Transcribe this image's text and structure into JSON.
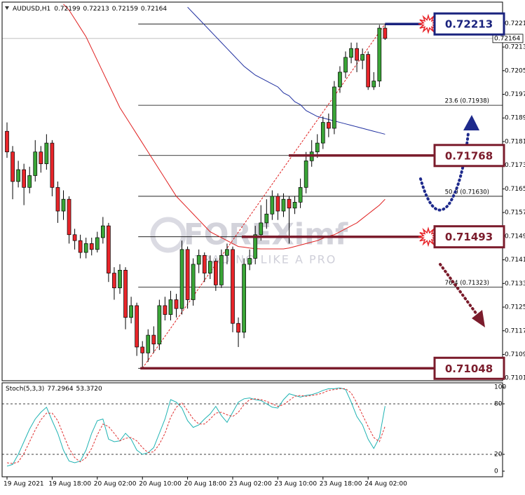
{
  "chart_data": {
    "type": "candlestick",
    "title": "AUDUSD,H1",
    "categories": [
      "19 Aug 2021",
      null,
      null,
      null,
      null,
      null,
      null,
      null,
      "19 Aug 18:00",
      null,
      null,
      null,
      null,
      null,
      null,
      null,
      "20 Aug 02:00",
      null,
      null,
      null,
      null,
      null,
      null,
      null,
      "20 Aug 10:00",
      null,
      null,
      null,
      null,
      null,
      null,
      null,
      "20 Aug 18:00",
      null,
      null,
      null,
      null,
      null,
      null,
      null,
      "23 Aug 02:00",
      null,
      null,
      null,
      null,
      null,
      null,
      null,
      "23 Aug 10:00",
      null,
      null,
      null,
      null,
      null,
      null,
      null,
      "23 Aug 18:00",
      null,
      null,
      null,
      null,
      null,
      null,
      null,
      "24 Aug 02:00",
      null,
      null,
      null
    ],
    "open": [
      0.7185,
      0.7178,
      0.7168,
      0.7172,
      0.7166,
      0.717,
      0.7178,
      0.7174,
      0.7181,
      0.7166,
      0.7158,
      0.7162,
      0.715,
      0.7148,
      0.7144,
      0.7147,
      0.7145,
      0.7149,
      0.7153,
      0.7137,
      0.7132,
      0.7138,
      0.7122,
      0.7126,
      0.7112,
      0.711,
      0.7116,
      0.7113,
      0.7126,
      0.7123,
      0.7128,
      0.7125,
      0.7145,
      0.7128,
      0.714,
      0.7143,
      0.7137,
      0.7141,
      0.7133,
      0.7143,
      0.7145,
      0.712,
      0.7117,
      0.714,
      0.7142,
      0.715,
      0.7154,
      0.7157,
      0.7163,
      0.7158,
      0.7162,
      0.7159,
      0.7161,
      0.7166,
      0.7175,
      0.7178,
      0.7181,
      0.7188,
      0.7186,
      0.72,
      0.7205,
      0.721,
      0.7213,
      0.7209,
      0.7211,
      0.72,
      0.7202,
      0.72199
    ],
    "high": [
      0.7188,
      0.718,
      0.7175,
      0.7174,
      0.7173,
      0.7182,
      0.718,
      0.7184,
      0.7182,
      0.7168,
      0.7165,
      0.7163,
      0.7152,
      0.715,
      0.7149,
      0.7149,
      0.7151,
      0.7156,
      0.7154,
      0.7139,
      0.714,
      0.7139,
      0.7129,
      0.7127,
      0.7114,
      0.7118,
      0.7119,
      0.7128,
      0.7129,
      0.7131,
      0.713,
      0.7148,
      0.7146,
      0.7142,
      0.7145,
      0.7144,
      0.7143,
      0.7142,
      0.7145,
      0.7147,
      0.7146,
      0.7122,
      0.7142,
      0.7145,
      0.7153,
      0.716,
      0.7162,
      0.7165,
      0.7164,
      0.7164,
      0.7163,
      0.7163,
      0.7169,
      0.7178,
      0.7182,
      0.7184,
      0.719,
      0.7191,
      0.7202,
      0.7207,
      0.7212,
      0.7215,
      0.7215,
      0.7213,
      0.7212,
      0.7205,
      0.7221,
      0.72213
    ],
    "low": [
      0.7176,
      0.7162,
      0.7166,
      0.716,
      0.7164,
      0.7168,
      0.7171,
      0.7172,
      0.7163,
      0.7154,
      0.7155,
      0.7147,
      0.7145,
      0.7142,
      0.7142,
      0.7143,
      0.7144,
      0.7147,
      0.7134,
      0.7128,
      0.713,
      0.7118,
      0.712,
      0.7109,
      0.71048,
      0.7107,
      0.711,
      0.7111,
      0.7121,
      0.7121,
      0.7122,
      0.7123,
      0.7125,
      0.7126,
      0.7137,
      0.7134,
      0.7135,
      0.7131,
      0.7132,
      0.714,
      0.7117,
      0.7112,
      0.7115,
      0.7138,
      0.714,
      0.7148,
      0.7152,
      0.7155,
      0.7155,
      0.7156,
      0.7147,
      0.7157,
      0.7159,
      0.7164,
      0.7173,
      0.7176,
      0.7179,
      0.7183,
      0.7184,
      0.7198,
      0.7203,
      0.7208,
      0.7205,
      0.7206,
      0.7199,
      0.7199,
      0.72,
      0.72159
    ],
    "close": [
      0.7178,
      0.7168,
      0.7172,
      0.7166,
      0.717,
      0.7178,
      0.7174,
      0.7181,
      0.7166,
      0.7158,
      0.7162,
      0.715,
      0.7148,
      0.7144,
      0.7147,
      0.7145,
      0.7149,
      0.7153,
      0.7137,
      0.7132,
      0.7138,
      0.7122,
      0.7126,
      0.7112,
      0.711,
      0.7116,
      0.7113,
      0.7126,
      0.7123,
      0.7128,
      0.7125,
      0.7145,
      0.7128,
      0.714,
      0.7143,
      0.7137,
      0.7141,
      0.7133,
      0.7143,
      0.7145,
      0.712,
      0.7117,
      0.714,
      0.7142,
      0.715,
      0.7154,
      0.7157,
      0.7163,
      0.7158,
      0.7162,
      0.7159,
      0.7161,
      0.7166,
      0.7175,
      0.7178,
      0.7181,
      0.7188,
      0.7186,
      0.72,
      0.7205,
      0.721,
      0.7213,
      0.7209,
      0.7211,
      0.72,
      0.7202,
      0.72199,
      0.72164
    ],
    "up_color": "#3aa537",
    "down_color": "#e8252a",
    "ylim": [
      0.71006,
      0.72287
    ],
    "yticks": [
      0.72215,
      0.72135,
      0.72055,
      0.71975,
      0.71895,
      0.71815,
      0.71735,
      0.71655,
      0.71575,
      0.71495,
      0.71415,
      0.71335,
      0.71255,
      0.71175,
      0.71095,
      0.71015
    ],
    "moving_averages": [
      {
        "color": "#e02020",
        "values": [
          null,
          null,
          null,
          null,
          null,
          null,
          null,
          null,
          null,
          null,
          0.7228,
          0.7226,
          0.7223,
          0.722,
          0.7217,
          0.7213,
          0.7209,
          0.7205,
          0.7201,
          0.7197,
          0.7193,
          0.719,
          0.7187,
          0.7184,
          0.7181,
          0.7178,
          0.7175,
          0.7172,
          0.7169,
          0.7166,
          0.7163,
          0.7161,
          0.7159,
          0.7157,
          0.7155,
          0.7153,
          0.7151,
          0.715,
          0.7149,
          0.7148,
          0.7147,
          0.7146,
          0.71458,
          0.71455,
          0.71453,
          0.71452,
          0.71452,
          0.71452,
          0.71452,
          0.71452,
          0.71455,
          0.7146,
          0.71465,
          0.7147,
          0.71475,
          0.7148,
          0.71488,
          0.71495,
          0.715,
          0.7151,
          0.7152,
          0.7153,
          0.7154,
          0.71555,
          0.7157,
          0.71585,
          0.716,
          0.7162
        ]
      },
      {
        "color": "#2030a0",
        "values": [
          null,
          null,
          null,
          null,
          null,
          null,
          null,
          null,
          null,
          null,
          null,
          null,
          null,
          null,
          null,
          null,
          null,
          null,
          null,
          null,
          null,
          null,
          null,
          null,
          null,
          null,
          null,
          null,
          null,
          null,
          null,
          null,
          0.7227,
          0.7225,
          0.7223,
          0.7221,
          0.7219,
          0.7217,
          0.7215,
          0.7213,
          0.7211,
          0.7209,
          0.7207,
          0.72055,
          0.7204,
          0.7203,
          0.7202,
          0.7201,
          0.72,
          0.7198,
          0.7197,
          0.7195,
          0.7194,
          0.7192,
          0.7191,
          0.719,
          0.71895,
          0.7189,
          0.71885,
          0.7188,
          0.71875,
          0.7187,
          0.71865,
          0.7186,
          0.71855,
          0.7185,
          0.71845,
          0.7184
        ]
      }
    ],
    "fib_levels": [
      {
        "price": 0.72213
      },
      {
        "price": 0.71938,
        "label": "23.6 (0.71938)"
      },
      {
        "price": 0.71768
      },
      {
        "price": 0.7163,
        "label": "50.0 (0.71630)"
      },
      {
        "price": 0.71493
      },
      {
        "price": 0.71323,
        "label": "76.4 (0.71323)"
      },
      {
        "price": 0.71048
      }
    ],
    "callouts": [
      {
        "price": 0.72213,
        "color": "#1a237e"
      },
      {
        "price": 0.71768,
        "color": "#7b1c2c"
      },
      {
        "price": 0.71493,
        "color": "#7b1c2c"
      },
      {
        "price": 0.71048,
        "color": "#7b1c2c"
      }
    ],
    "watermark": [
      "FOREXimf",
      "TRADING LIKE A PRO"
    ],
    "stoch": {
      "title": "Stoch(5,3,3)",
      "readout": [
        "77.2964",
        "53.3720"
      ],
      "ylim": [
        -6.67,
        105
      ],
      "yticks": [
        100,
        80,
        20,
        0
      ],
      "levels": [
        80,
        20
      ],
      "k": {
        "color": "#1fb3b3",
        "values": [
          6,
          8,
          20,
          35,
          50,
          62,
          70,
          76,
          60,
          45,
          25,
          12,
          10,
          12,
          25,
          45,
          60,
          62,
          38,
          35,
          36,
          45,
          38,
          25,
          20,
          22,
          28,
          45,
          62,
          85,
          82,
          75,
          60,
          52,
          55,
          62,
          68,
          77,
          66,
          58,
          70,
          82,
          86,
          87,
          85,
          84,
          80,
          76,
          75,
          85,
          92,
          90,
          88,
          90,
          91,
          93,
          96,
          98,
          98,
          99,
          97,
          82,
          65,
          55,
          38,
          27,
          40,
          77.2964
        ]
      },
      "d": {
        "color": "#e03030",
        "values": [
          10,
          9,
          11,
          21,
          35,
          49,
          61,
          69,
          69,
          60,
          43,
          27,
          16,
          11,
          16,
          27,
          43,
          56,
          53,
          45,
          36,
          39,
          40,
          36,
          28,
          22,
          23,
          32,
          45,
          64,
          76,
          81,
          72,
          62,
          56,
          56,
          62,
          69,
          70,
          67,
          65,
          70,
          79,
          85,
          86,
          85,
          83,
          80,
          77,
          79,
          84,
          89,
          90,
          89,
          90,
          91,
          93,
          96,
          97,
          98,
          98,
          93,
          81,
          67,
          53,
          40,
          35,
          53.372
        ]
      }
    }
  }
}
